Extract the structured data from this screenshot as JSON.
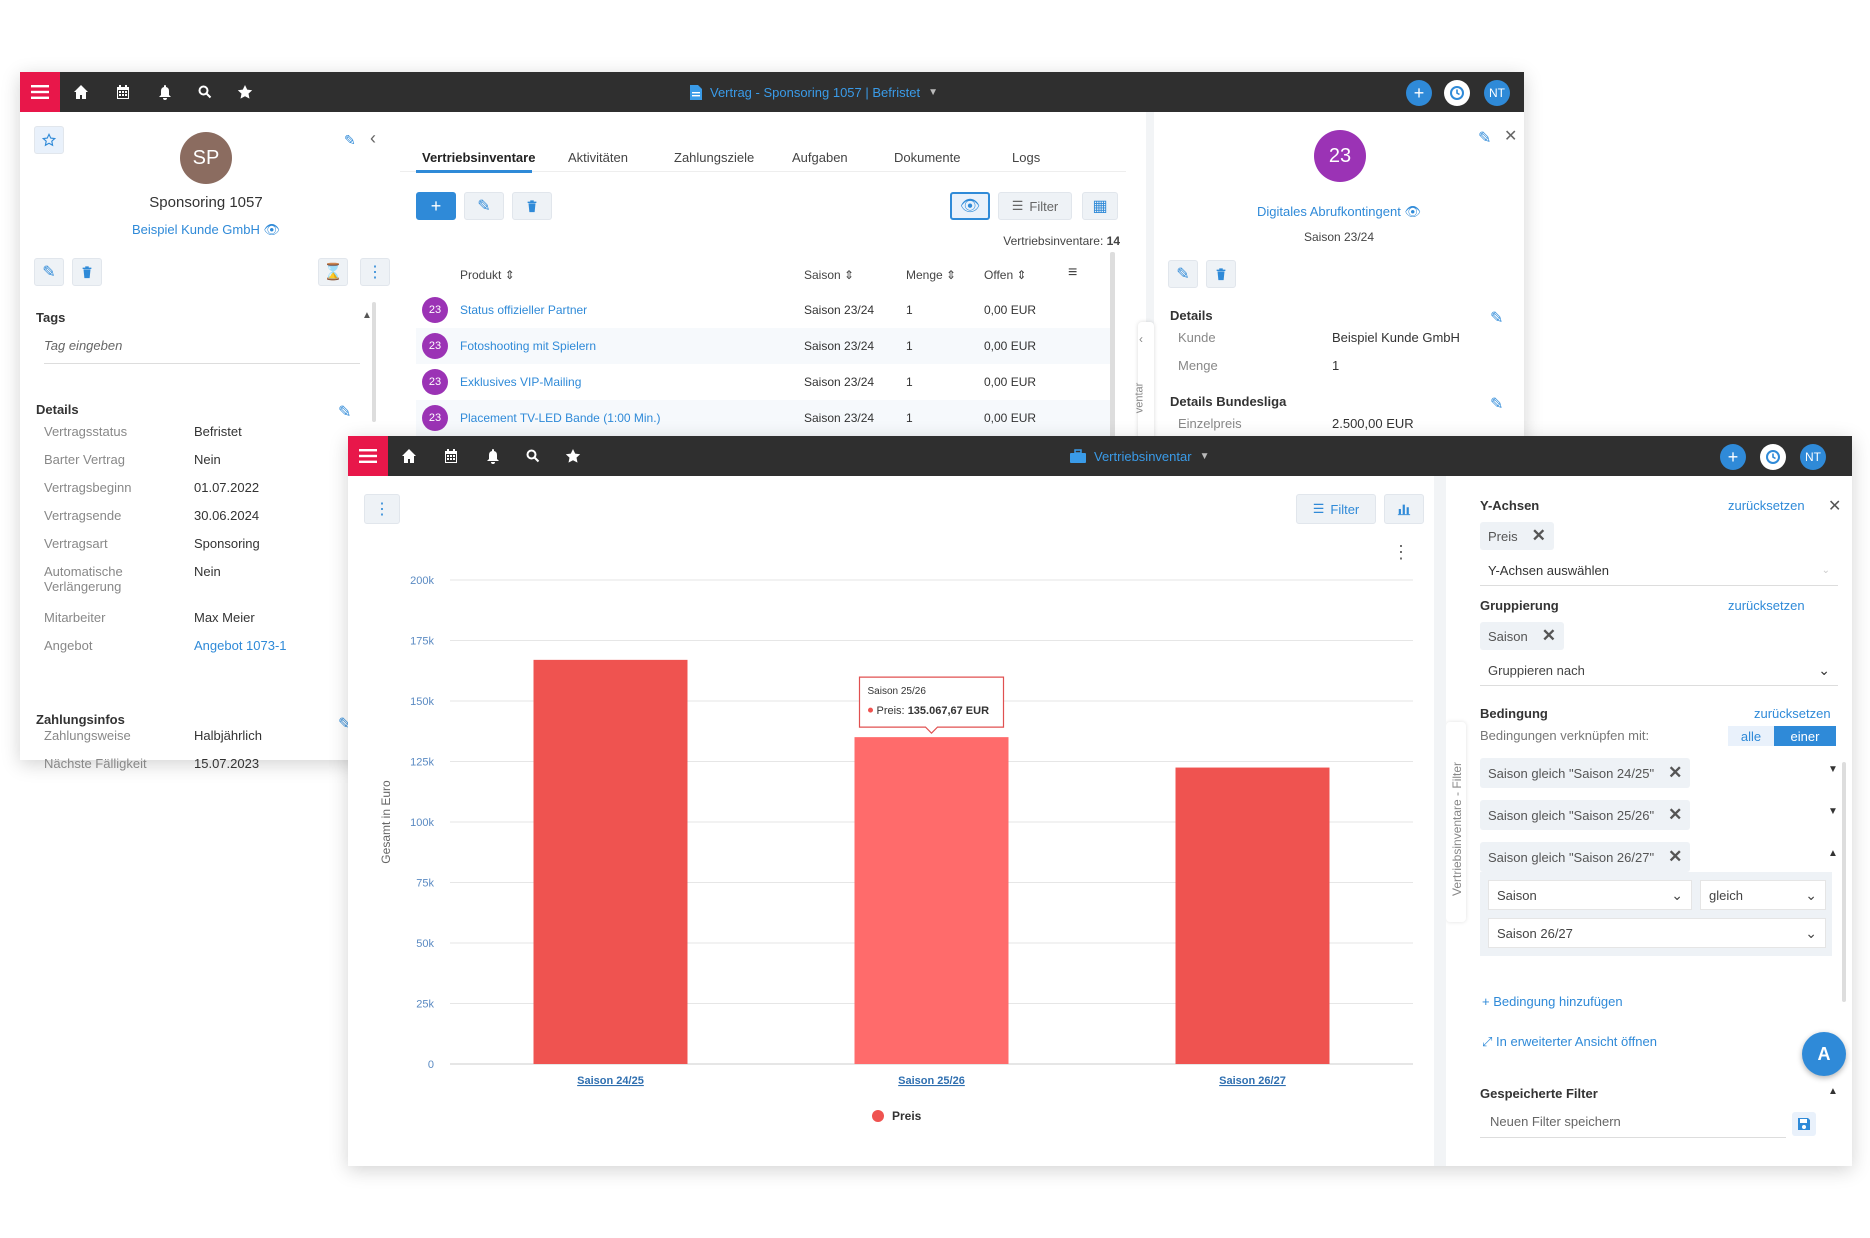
{
  "back": {
    "topbar": {
      "title": "Vertrag - Sponsoring 1057 | Befristet",
      "user": "NT"
    },
    "left": {
      "avatar": "SP",
      "name": "Sponsoring 1057",
      "customer": "Beispiel Kunde GmbH",
      "tags_title": "Tags",
      "tags_placeholder": "Tag eingeben",
      "details_title": "Details",
      "details": [
        {
          "k": "Vertragsstatus",
          "v": "Befristet"
        },
        {
          "k": "Barter Vertrag",
          "v": "Nein"
        },
        {
          "k": "Vertragsbeginn",
          "v": "01.07.2022"
        },
        {
          "k": "Vertragsende",
          "v": "30.06.2024"
        },
        {
          "k": "Vertragsart",
          "v": "Sponsoring"
        },
        {
          "k": "Automatische Verlängerung",
          "v": "Nein"
        },
        {
          "k": "Mitarbeiter",
          "v": "Max Meier"
        },
        {
          "k": "Angebot",
          "v": "Angebot 1073-1"
        }
      ],
      "payment_title": "Zahlungsinfos",
      "payment": [
        {
          "k": "Zahlungsweise",
          "v": "Halbjährlich"
        },
        {
          "k": "Nächste Fälligkeit",
          "v": "15.07.2023"
        }
      ]
    },
    "center": {
      "tabs": [
        "Vertriebsinventare",
        "Aktivitäten",
        "Zahlungsziele",
        "Aufgaben",
        "Dokumente",
        "Logs"
      ],
      "filter": "Filter",
      "count_label": "Vertriebsinventare:",
      "count": "14",
      "columns": {
        "product": "Produkt",
        "season": "Saison",
        "qty": "Menge",
        "open": "Offen"
      },
      "rows": [
        {
          "badge": "23",
          "product": "Status offizieller Partner",
          "season": "Saison 23/24",
          "qty": "1",
          "open": "0,00 EUR"
        },
        {
          "badge": "23",
          "product": "Fotoshooting mit Spielern",
          "season": "Saison 23/24",
          "qty": "1",
          "open": "0,00 EUR"
        },
        {
          "badge": "23",
          "product": "Exklusives VIP-Mailing",
          "season": "Saison 23/24",
          "qty": "1",
          "open": "0,00 EUR"
        },
        {
          "badge": "23",
          "product": "Placement TV-LED Bande (1:00 Min.)",
          "season": "Saison 23/24",
          "qty": "1",
          "open": "0,00 EUR"
        }
      ]
    },
    "right": {
      "badge": "23",
      "name": "Digitales Abrufkontingent",
      "season": "Saison 23/24",
      "details_title": "Details",
      "details": [
        {
          "k": "Kunde",
          "v": "Beispiel Kunde GmbH"
        },
        {
          "k": "Menge",
          "v": "1"
        }
      ],
      "bl_title": "Details Bundesliga",
      "bl": [
        {
          "k": "Einzelpreis",
          "v": "2.500,00 EUR"
        }
      ],
      "side_tab": "ventar"
    }
  },
  "front": {
    "topbar": {
      "title": "Vertriebsinventar",
      "user": "NT"
    },
    "filter": "Filter",
    "side_tab": "Vertriebsinventare - Filter",
    "panel": {
      "y_title": "Y-Achsen",
      "reset": "zurücksetzen",
      "y_chip": "Preis",
      "y_select": "Y-Achsen auswählen",
      "group_title": "Gruppierung",
      "group_chip": "Saison",
      "group_select": "Gruppieren nach",
      "cond_title": "Bedingung",
      "cond_link": "Bedingungen verknüpfen mit:",
      "cond_all": "alle",
      "cond_one": "einer",
      "conds": [
        "Saison gleich \"Saison 24/25\"",
        "Saison gleich \"Saison 25/26\"",
        "Saison gleich \"Saison 26/27\""
      ],
      "field": "Saison",
      "op": "gleich",
      "value": "Saison 26/27",
      "add": "Bedingung hinzufügen",
      "open": "In erweiterter Ansicht öffnen",
      "saved_title": "Gespeicherte Filter",
      "saved_placeholder": "Neuen Filter speichern",
      "fab": "A"
    },
    "tooltip": {
      "title": "Saison 25/26",
      "label": "Preis:",
      "value": "135.067,67 EUR"
    }
  },
  "chart_data": {
    "type": "bar",
    "categories": [
      "Saison 24/25",
      "Saison 25/26",
      "Saison 26/27"
    ],
    "series": [
      {
        "name": "Preis",
        "values": [
          167000,
          135067.67,
          122500
        ]
      }
    ],
    "ylabel": "Gesamt in Euro",
    "ylim": [
      0,
      200000
    ],
    "yticks": [
      "0",
      "25k",
      "50k",
      "75k",
      "100k",
      "125k",
      "150k",
      "175k",
      "200k"
    ],
    "legend": "bottom-center",
    "grid": true,
    "colors": {
      "bar": "#ef5350",
      "bar_hover": "#ff6b6b"
    }
  }
}
